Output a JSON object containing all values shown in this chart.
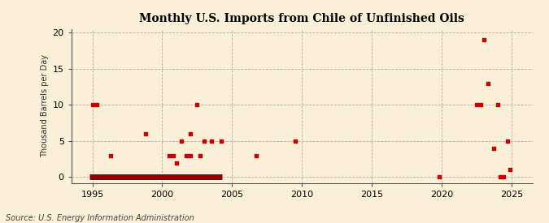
{
  "title": "Monthly U.S. Imports from Chile of Unfinished Oils",
  "ylabel": "Thousand Barrels per Day",
  "source": "Source: U.S. Energy Information Administration",
  "background_color": "#faefd7",
  "marker_color": "#cc0000",
  "line_color": "#8b0000",
  "xlim": [
    1993.5,
    2026.5
  ],
  "ylim": [
    -0.8,
    20.5
  ],
  "yticks": [
    0,
    5,
    10,
    15,
    20
  ],
  "xticks": [
    1995,
    2000,
    2005,
    2010,
    2015,
    2020,
    2025
  ],
  "data_points": [
    [
      1995.0,
      10
    ],
    [
      1995.3,
      10
    ],
    [
      1996.3,
      3
    ],
    [
      1998.8,
      6
    ],
    [
      2000.5,
      3
    ],
    [
      2000.8,
      3
    ],
    [
      2001.0,
      2
    ],
    [
      2001.4,
      5
    ],
    [
      2001.7,
      3
    ],
    [
      2002.0,
      3
    ],
    [
      2002.0,
      6
    ],
    [
      2002.5,
      10
    ],
    [
      2002.7,
      3
    ],
    [
      2003.0,
      5
    ],
    [
      2003.5,
      5
    ],
    [
      2004.2,
      5
    ],
    [
      2006.7,
      3
    ],
    [
      2009.5,
      5
    ],
    [
      2019.8,
      0
    ],
    [
      2022.5,
      10
    ],
    [
      2022.8,
      10
    ],
    [
      2023.0,
      19
    ],
    [
      2023.3,
      13
    ],
    [
      2023.7,
      4
    ],
    [
      2024.0,
      10
    ],
    [
      2024.2,
      0
    ],
    [
      2024.4,
      0
    ],
    [
      2024.7,
      5
    ],
    [
      2024.9,
      1
    ]
  ],
  "zero_line_start": 1994.8,
  "zero_line_end": 2004.3
}
